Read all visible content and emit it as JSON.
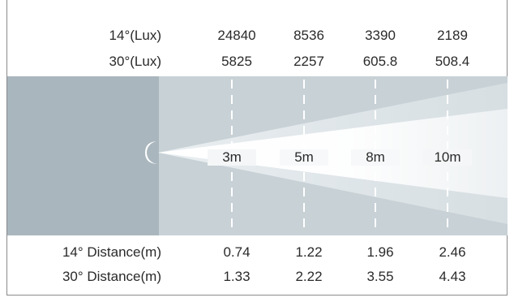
{
  "lux_rows": [
    {
      "label": "14°(Lux)",
      "values": [
        "24840",
        "8536",
        "3390",
        "2189"
      ]
    },
    {
      "label": "30°(Lux)",
      "values": [
        "5825",
        "2257",
        "605.8",
        "508.4"
      ]
    }
  ],
  "distances": [
    "3m",
    "5m",
    "8m",
    "10m"
  ],
  "distance_rows": [
    {
      "label": "14° Distance(m)",
      "values": [
        "0.74",
        "1.22",
        "1.96",
        "2.46"
      ]
    },
    {
      "label": "30° Distance(m)",
      "values": [
        "1.33",
        "2.22",
        "3.55",
        "4.43"
      ]
    }
  ],
  "colors": {
    "dark_panel": "#a9b6bd",
    "light_panel": "#c7d1d6",
    "beam": "#ffffff",
    "text": "#2a2a2a"
  }
}
